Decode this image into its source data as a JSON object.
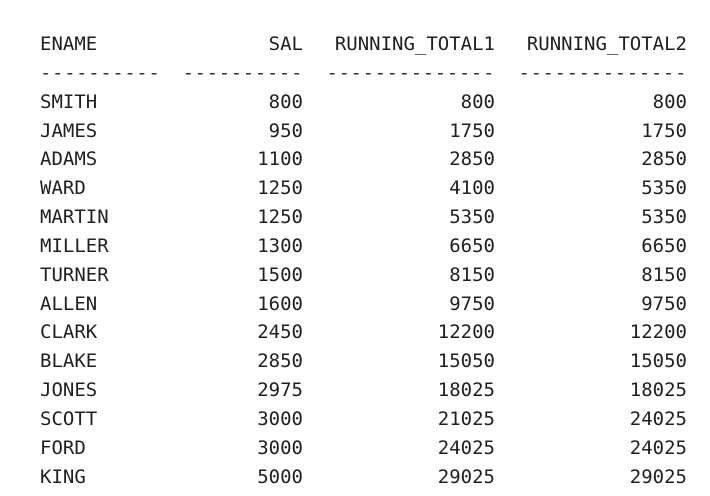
{
  "headers": {
    "ename": "ENAME",
    "sal": "SAL",
    "running_total1": "RUNNING_TOTAL1",
    "running_total2": "RUNNING_TOTAL2"
  },
  "separators": {
    "ename": "----------",
    "sal": "----------",
    "running_total1": "--------------",
    "running_total2": "--------------"
  },
  "rows": [
    {
      "ename": "SMITH",
      "sal": "800",
      "running_total1": "800",
      "running_total2": "800"
    },
    {
      "ename": "JAMES",
      "sal": "950",
      "running_total1": "1750",
      "running_total2": "1750"
    },
    {
      "ename": "ADAMS",
      "sal": "1100",
      "running_total1": "2850",
      "running_total2": "2850"
    },
    {
      "ename": "WARD",
      "sal": "1250",
      "running_total1": "4100",
      "running_total2": "5350"
    },
    {
      "ename": "MARTIN",
      "sal": "1250",
      "running_total1": "5350",
      "running_total2": "5350"
    },
    {
      "ename": "MILLER",
      "sal": "1300",
      "running_total1": "6650",
      "running_total2": "6650"
    },
    {
      "ename": "TURNER",
      "sal": "1500",
      "running_total1": "8150",
      "running_total2": "8150"
    },
    {
      "ename": "ALLEN",
      "sal": "1600",
      "running_total1": "9750",
      "running_total2": "9750"
    },
    {
      "ename": "CLARK",
      "sal": "2450",
      "running_total1": "12200",
      "running_total2": "12200"
    },
    {
      "ename": "BLAKE",
      "sal": "2850",
      "running_total1": "15050",
      "running_total2": "15050"
    },
    {
      "ename": "JONES",
      "sal": "2975",
      "running_total1": "18025",
      "running_total2": "18025"
    },
    {
      "ename": "SCOTT",
      "sal": "3000",
      "running_total1": "21025",
      "running_total2": "24025"
    },
    {
      "ename": "FORD",
      "sal": "3000",
      "running_total1": "24025",
      "running_total2": "24025"
    },
    {
      "ename": "KING",
      "sal": "5000",
      "running_total1": "29025",
      "running_total2": "29025"
    }
  ]
}
